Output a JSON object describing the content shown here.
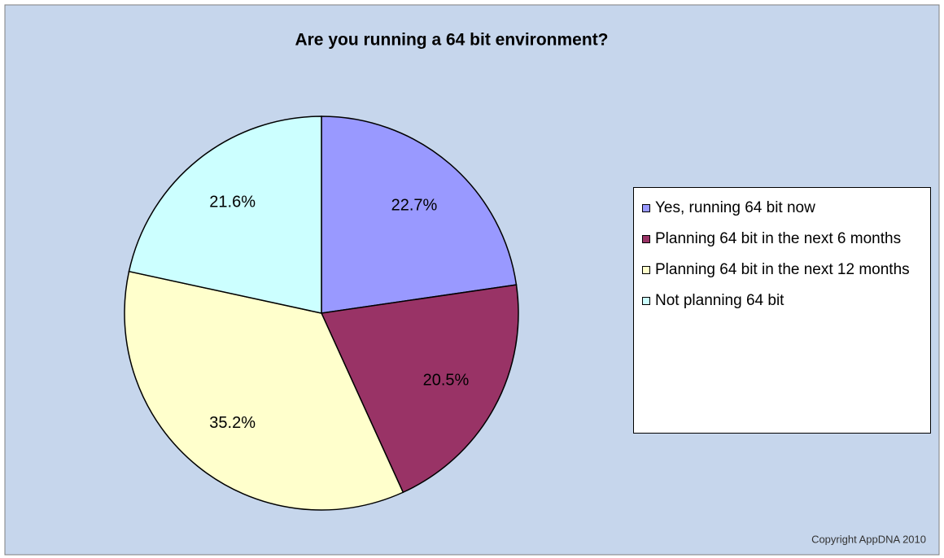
{
  "chart_data": {
    "type": "pie",
    "title": "Are you running a 64 bit environment?",
    "categories": [
      "Yes, running 64 bit now",
      "Planning 64 bit in the next 6 months",
      "Planning 64 bit in the next 12 months",
      "Not planning 64 bit"
    ],
    "values": [
      22.7,
      20.5,
      35.2,
      21.6
    ],
    "value_labels": [
      "22.7%",
      "20.5%",
      "35.2%",
      "21.6%"
    ],
    "colors": [
      "#9999ff",
      "#993366",
      "#ffffcc",
      "#ccffff"
    ],
    "legend": "right",
    "annotations": [
      "Copyright AppDNA 2010"
    ]
  }
}
